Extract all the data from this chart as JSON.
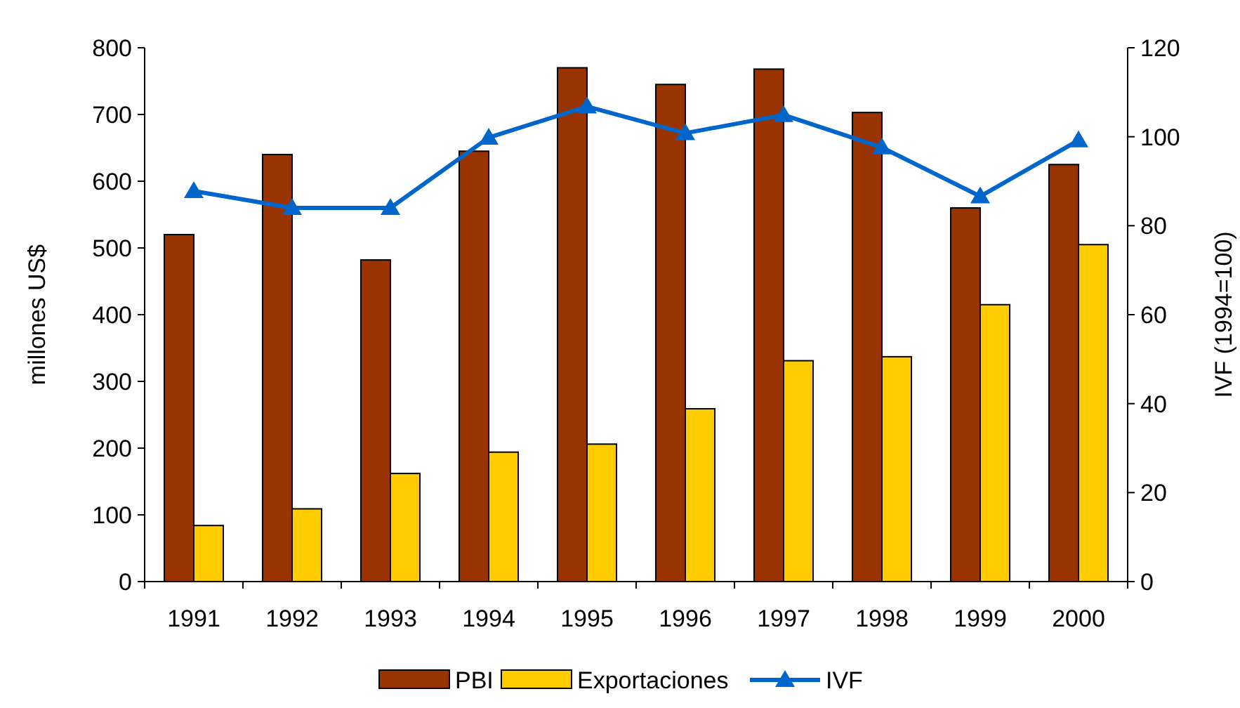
{
  "chart_data": {
    "type": "bar",
    "ylabel": "millones US$",
    "y2label": "IVF (1994=100)",
    "categories": [
      "1991",
      "1992",
      "1993",
      "1994",
      "1995",
      "1996",
      "1997",
      "1998",
      "1999",
      "2000"
    ],
    "series": [
      {
        "name": "PBI",
        "color": "#993300",
        "values": [
          520,
          640,
          482,
          645,
          770,
          745,
          768,
          703,
          560,
          625
        ]
      },
      {
        "name": "Exportaciones",
        "color": "#ffcc00",
        "values": [
          84,
          109,
          162,
          194,
          206,
          259,
          331,
          337,
          415,
          505
        ]
      },
      {
        "name": "IVF",
        "type": "line",
        "axis": "y2",
        "color": "#0066cc",
        "marker": "triangle",
        "values": [
          87.8,
          84,
          84,
          99.8,
          106.8,
          100.8,
          104.9,
          97.6,
          86.6,
          99.2
        ]
      }
    ],
    "ylim": [
      0,
      800
    ],
    "yticks": [
      0,
      100,
      200,
      300,
      400,
      500,
      600,
      700,
      800
    ],
    "y2lim": [
      0,
      120
    ],
    "y2ticks": [
      0,
      20,
      40,
      60,
      80,
      100,
      120
    ],
    "legend": "bottom",
    "grid": false
  }
}
